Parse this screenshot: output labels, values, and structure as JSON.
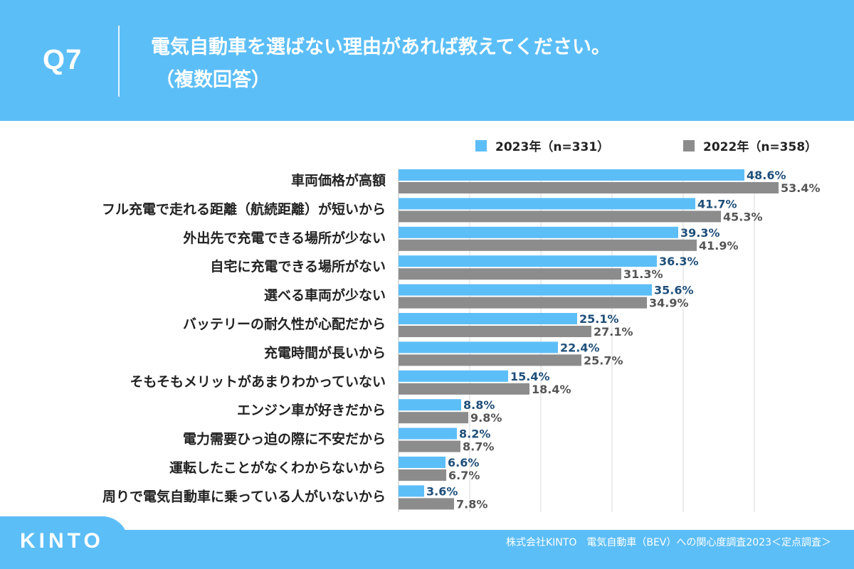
{
  "header": {
    "question_no": "Q7",
    "title": "電気自動車を選ばない理由があれば教えてください。",
    "subtitle": "（複数回答）"
  },
  "footer": {
    "logo_text": "KINTO",
    "source": "株式会社KINTO　電気自動車（BEV）への関心度調査2023＜定点調査＞"
  },
  "colors": {
    "background": "#5cbef7",
    "series_2023": "#5cbef7",
    "series_2022": "#8c8c8c",
    "label_2023": "#1f4f7a",
    "label_2022": "#555555",
    "grid": "#d9d9d9"
  },
  "chart_data": {
    "type": "bar",
    "orientation": "horizontal",
    "title": "電気自動車を選ばない理由があれば教えてください。（複数回答）",
    "xlabel": "",
    "ylabel": "",
    "xlim": [
      0,
      60
    ],
    "grid": true,
    "legend_position": "top-right",
    "categories": [
      "車両価格が高額",
      "フル充電で走れる距離（航続距離）が短いから",
      "外出先で充電できる場所が少ない",
      "自宅に充電できる場所がない",
      "選べる車両が少ない",
      "バッテリーの耐久性が心配だから",
      "充電時間が長いから",
      "そもそもメリットがあまりわかっていない",
      "エンジン車が好きだから",
      "電力需要ひっ迫の際に不安だから",
      "運転したことがなくわからないから",
      "周りで電気自動車に乗っている人がいないから"
    ],
    "series": [
      {
        "name": "2023年（n=331）",
        "values": [
          48.6,
          41.7,
          39.3,
          36.3,
          35.6,
          25.1,
          22.4,
          15.4,
          8.8,
          8.2,
          6.6,
          3.6
        ],
        "labels": [
          "48.6%",
          "41.7%",
          "39.3%",
          "36.3%",
          "35.6%",
          "25.1%",
          "22.4%",
          "15.4%",
          "8.8%",
          "8.2%",
          "6.6%",
          "3.6%"
        ]
      },
      {
        "name": "2022年（n=358）",
        "values": [
          53.4,
          45.3,
          41.9,
          31.3,
          34.9,
          27.1,
          25.7,
          18.4,
          9.8,
          8.7,
          6.7,
          7.8
        ],
        "labels": [
          "53.4%",
          "45.3%",
          "41.9%",
          "31.3%",
          "34.9%",
          "27.1%",
          "25.7%",
          "18.4%",
          "9.8%",
          "8.7%",
          "6.7%",
          "7.8%"
        ]
      }
    ]
  }
}
